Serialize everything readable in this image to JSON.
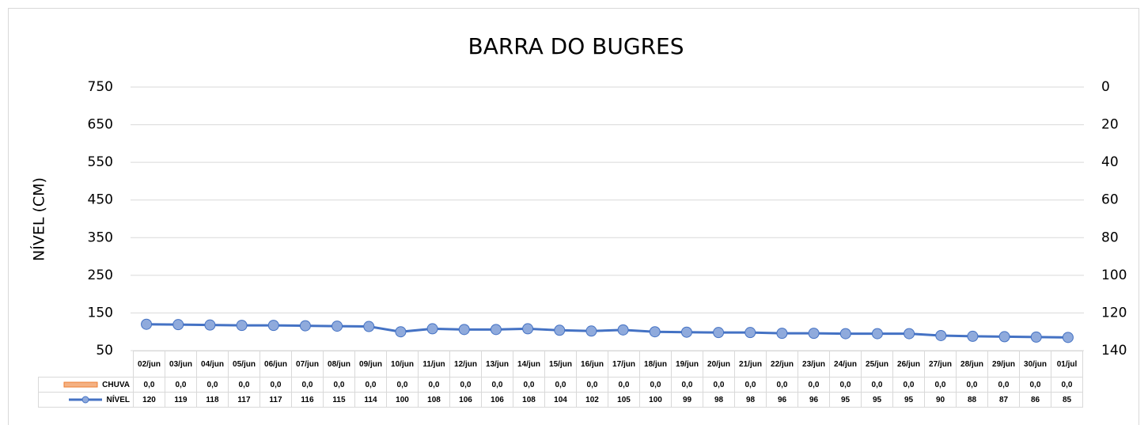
{
  "chart_data": {
    "type": "bar_line_table",
    "title": "BARRA DO BUGRES",
    "y_label": "NÍVEL (CM)",
    "categories": [
      "02/jun",
      "03/jun",
      "04/jun",
      "05/jun",
      "06/jun",
      "07/jun",
      "08/jun",
      "09/jun",
      "10/jun",
      "11/jun",
      "12/jun",
      "13/jun",
      "14/jun",
      "15/jun",
      "16/jun",
      "17/jun",
      "18/jun",
      "19/jun",
      "20/jun",
      "21/jun",
      "22/jun",
      "23/jun",
      "24/jun",
      "25/jun",
      "26/jun",
      "27/jun",
      "28/jun",
      "29/jun",
      "30/jun",
      "01/jul"
    ],
    "series": [
      {
        "name": "CHUVA",
        "type": "bar",
        "axis": "y2",
        "color": "#f4b183",
        "edge_color": "#ed7d31",
        "values": [
          0,
          0,
          0,
          0,
          0,
          0,
          0,
          0,
          0,
          0,
          0,
          0,
          0,
          0,
          0,
          0,
          0,
          0,
          0,
          0,
          0,
          0,
          0,
          0,
          0,
          0,
          0,
          0,
          0,
          0
        ],
        "value_labels": [
          "0,0",
          "0,0",
          "0,0",
          "0,0",
          "0,0",
          "0,0",
          "0,0",
          "0,0",
          "0,0",
          "0,0",
          "0,0",
          "0,0",
          "0,0",
          "0,0",
          "0,0",
          "0,0",
          "0,0",
          "0,0",
          "0,0",
          "0,0",
          "0,0",
          "0,0",
          "0,0",
          "0,0",
          "0,0",
          "0,0",
          "0,0",
          "0,0",
          "0,0",
          "0,0"
        ]
      },
      {
        "name": "NÍVEL",
        "type": "line",
        "color": "#4472c4",
        "marker_color": "#8faadc",
        "values": [
          120,
          119,
          118,
          117,
          117,
          116,
          115,
          114,
          100,
          108,
          106,
          106,
          108,
          104,
          102,
          105,
          100,
          99,
          98,
          98,
          96,
          96,
          95,
          95,
          95,
          90,
          88,
          87,
          86,
          85
        ]
      }
    ],
    "ylim": [
      50,
      750
    ],
    "yticks": [
      750,
      650,
      550,
      450,
      350,
      250,
      150,
      50
    ],
    "y2lim": [
      140,
      0
    ],
    "y2ticks": [
      0,
      20,
      40,
      60,
      80,
      100,
      120,
      140
    ],
    "grid": true
  }
}
